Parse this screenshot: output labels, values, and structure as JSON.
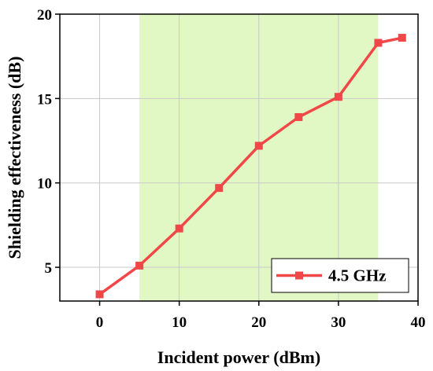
{
  "chart_data": {
    "type": "line",
    "title": "",
    "xlabel": "Incident power (dBm)",
    "ylabel": "Shielding effectiveness (dB)",
    "xlim": [
      -5,
      40
    ],
    "ylim": [
      3,
      20
    ],
    "xticks": [
      0,
      10,
      20,
      30,
      40
    ],
    "yticks": [
      5,
      10,
      15,
      20
    ],
    "grid": true,
    "legend_position": "bottom-right",
    "highlight_band": {
      "x_start": 5,
      "x_end": 35,
      "color": "#e2f8c4"
    },
    "series": [
      {
        "name": "4.5 GHz",
        "color": "#f04848",
        "marker": "square",
        "x": [
          0,
          5,
          10,
          15,
          20,
          25,
          30,
          35,
          38
        ],
        "y": [
          3.4,
          5.1,
          7.3,
          9.7,
          12.2,
          13.9,
          15.1,
          18.3,
          18.6
        ]
      }
    ]
  }
}
